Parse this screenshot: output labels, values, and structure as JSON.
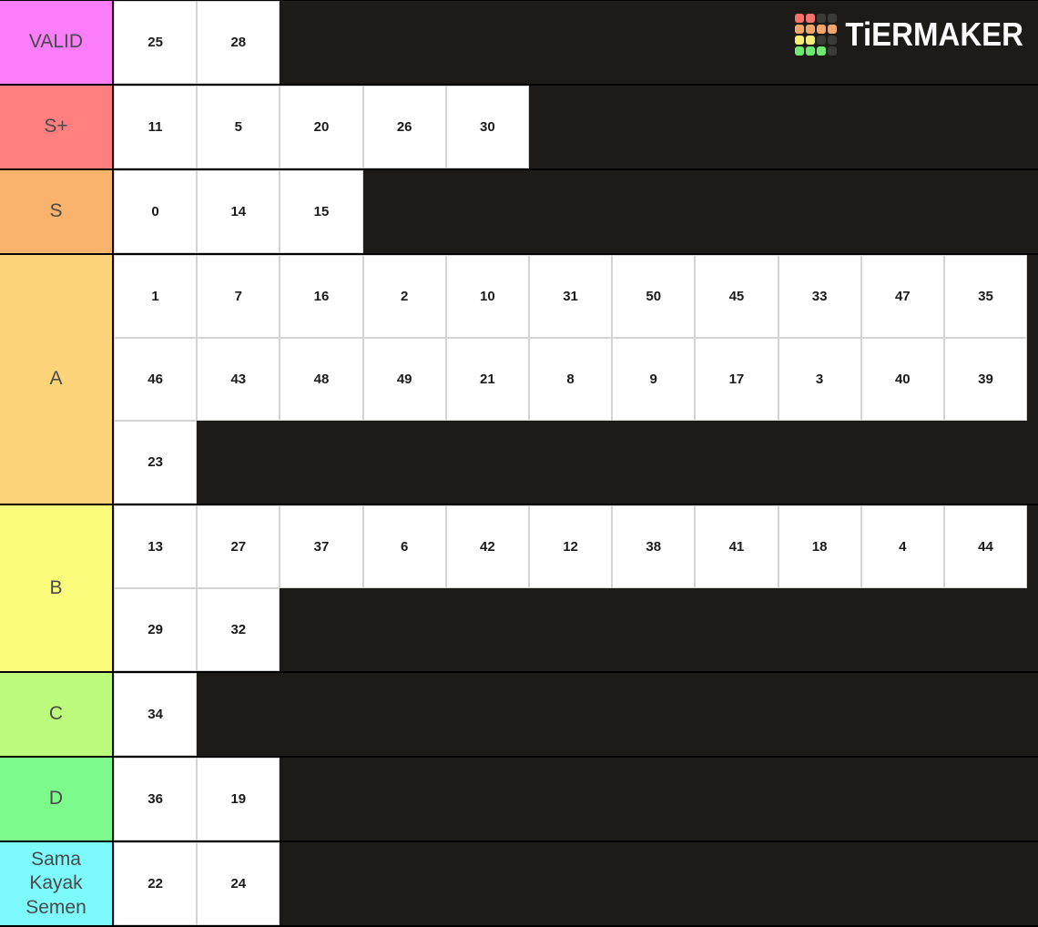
{
  "logo": {
    "text": "TiERMAKER",
    "palette": {
      "red": "#f4716c",
      "orange": "#f2a569",
      "yellow": "#f3ef76",
      "green": "#6fe96f",
      "dark": "#3b3b38"
    },
    "grid": [
      [
        "red",
        "red",
        "dark",
        "dark"
      ],
      [
        "orange",
        "orange",
        "orange",
        "orange"
      ],
      [
        "yellow",
        "yellow",
        "dark",
        "dark"
      ],
      [
        "green",
        "green",
        "green",
        "dark"
      ]
    ]
  },
  "theme": {
    "background": "#1d1b18",
    "row_divider": "#000000",
    "tile_background": "#ffffff",
    "tile_border": "#d4d4d4",
    "tile_text": "#1b1b1b",
    "label_text": "#4a4a4a",
    "logo_text_color": "#ffffff"
  },
  "tiers": [
    {
      "label": "VALID",
      "color": "#fa7efa",
      "items": [
        "25",
        "28"
      ]
    },
    {
      "label": "S+",
      "color": "#fe7f7d",
      "items": [
        "11",
        "5",
        "20",
        "26",
        "30"
      ]
    },
    {
      "label": "S",
      "color": "#f9b36d",
      "items": [
        "0",
        "14",
        "15"
      ]
    },
    {
      "label": "A",
      "color": "#fbd379",
      "items": [
        "1",
        "7",
        "16",
        "2",
        "10",
        "31",
        "50",
        "45",
        "33",
        "47",
        "35",
        "46",
        "43",
        "48",
        "49",
        "21",
        "8",
        "9",
        "17",
        "3",
        "40",
        "39",
        "23"
      ]
    },
    {
      "label": "B",
      "color": "#fbfb7c",
      "items": [
        "13",
        "27",
        "37",
        "6",
        "42",
        "12",
        "38",
        "41",
        "18",
        "4",
        "44",
        "29",
        "32"
      ]
    },
    {
      "label": "C",
      "color": "#bdfb7d",
      "items": [
        "34"
      ]
    },
    {
      "label": "D",
      "color": "#7dfa8c",
      "items": [
        "36",
        "19"
      ]
    },
    {
      "label": "Sama Kayak Semen",
      "color": "#7dfafc",
      "items": [
        "22",
        "24"
      ]
    }
  ]
}
